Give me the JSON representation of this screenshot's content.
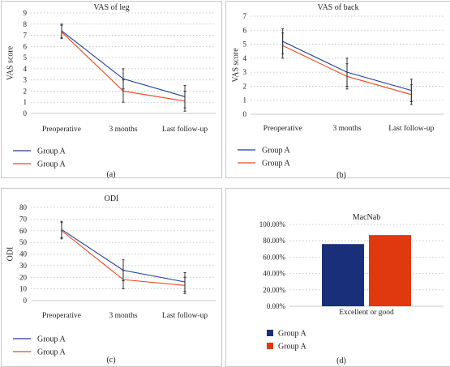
{
  "colors": {
    "blue": "#1f3d93",
    "red": "#e8481e",
    "bar_blue": "#1a2f7a",
    "bar_red": "#e0390e",
    "grid": "#b8b8b8",
    "error": "#222222"
  },
  "chart_data": [
    {
      "id": "a",
      "type": "line",
      "title": "VAS of leg",
      "ylabel": "VAS score",
      "xlabel": "",
      "categories": [
        "Preoperative",
        "3 months",
        "Last follow-up"
      ],
      "ylim": [
        0,
        9
      ],
      "yticks": [
        "0",
        "1",
        "2",
        "3",
        "4",
        "5",
        "6",
        "7",
        "8",
        "9"
      ],
      "grid": true,
      "legend_position": "bottom-left",
      "series": [
        {
          "name": "Group A",
          "color": "blue",
          "values": [
            7.4,
            3.1,
            1.5
          ],
          "error": [
            0.6,
            0.9,
            1.0
          ]
        },
        {
          "name": "Group A",
          "color": "red",
          "values": [
            7.3,
            2.0,
            1.1
          ],
          "error": [
            0.6,
            1.0,
            0.9
          ]
        }
      ],
      "sublabel": "(a)"
    },
    {
      "id": "b",
      "type": "line",
      "title": "VAS of back",
      "ylabel": "VAS score",
      "xlabel": "",
      "categories": [
        "Preoperative",
        "3 months",
        "Last follow-up"
      ],
      "ylim": [
        0,
        7
      ],
      "yticks": [
        "0",
        "1",
        "2",
        "3",
        "4",
        "5",
        "6",
        "7"
      ],
      "grid": true,
      "legend_position": "bottom-left",
      "series": [
        {
          "name": "Group A",
          "color": "blue",
          "values": [
            5.2,
            3.0,
            1.7
          ],
          "error": [
            0.9,
            1.0,
            0.8
          ]
        },
        {
          "name": "Group A",
          "color": "red",
          "values": [
            4.9,
            2.7,
            1.4
          ],
          "error": [
            0.9,
            0.9,
            0.7
          ]
        }
      ],
      "sublabel": "(b)"
    },
    {
      "id": "c",
      "type": "line",
      "title": "ODI",
      "ylabel": "ODI",
      "xlabel": "",
      "categories": [
        "Preoperative",
        "3 months",
        "Last follow-up"
      ],
      "ylim": [
        0,
        80
      ],
      "yticks": [
        "0",
        "10",
        "20",
        "30",
        "40",
        "50",
        "60",
        "70",
        "80"
      ],
      "grid": true,
      "legend_position": "bottom-left",
      "series": [
        {
          "name": "Group A",
          "color": "blue",
          "values": [
            61,
            26,
            16
          ],
          "error": [
            7,
            9,
            8
          ]
        },
        {
          "name": "Group A",
          "color": "red",
          "values": [
            60,
            18,
            13
          ],
          "error": [
            7,
            8,
            7
          ]
        }
      ],
      "sublabel": "(c)"
    },
    {
      "id": "d",
      "type": "bar",
      "title": "MacNab",
      "ylabel": "",
      "xlabel": "",
      "categories": [
        "Excellent or good"
      ],
      "ylim": [
        0,
        100
      ],
      "yticks": [
        "0.00%",
        "20.00%",
        "40.00%",
        "60.00%",
        "80.00%",
        "100.00%"
      ],
      "grid": true,
      "legend_position": "bottom-left",
      "series": [
        {
          "name": "Group A",
          "color": "bar_blue",
          "values": [
            76
          ]
        },
        {
          "name": "Group A",
          "color": "bar_red",
          "values": [
            87
          ]
        }
      ],
      "sublabel": "(d)"
    }
  ]
}
